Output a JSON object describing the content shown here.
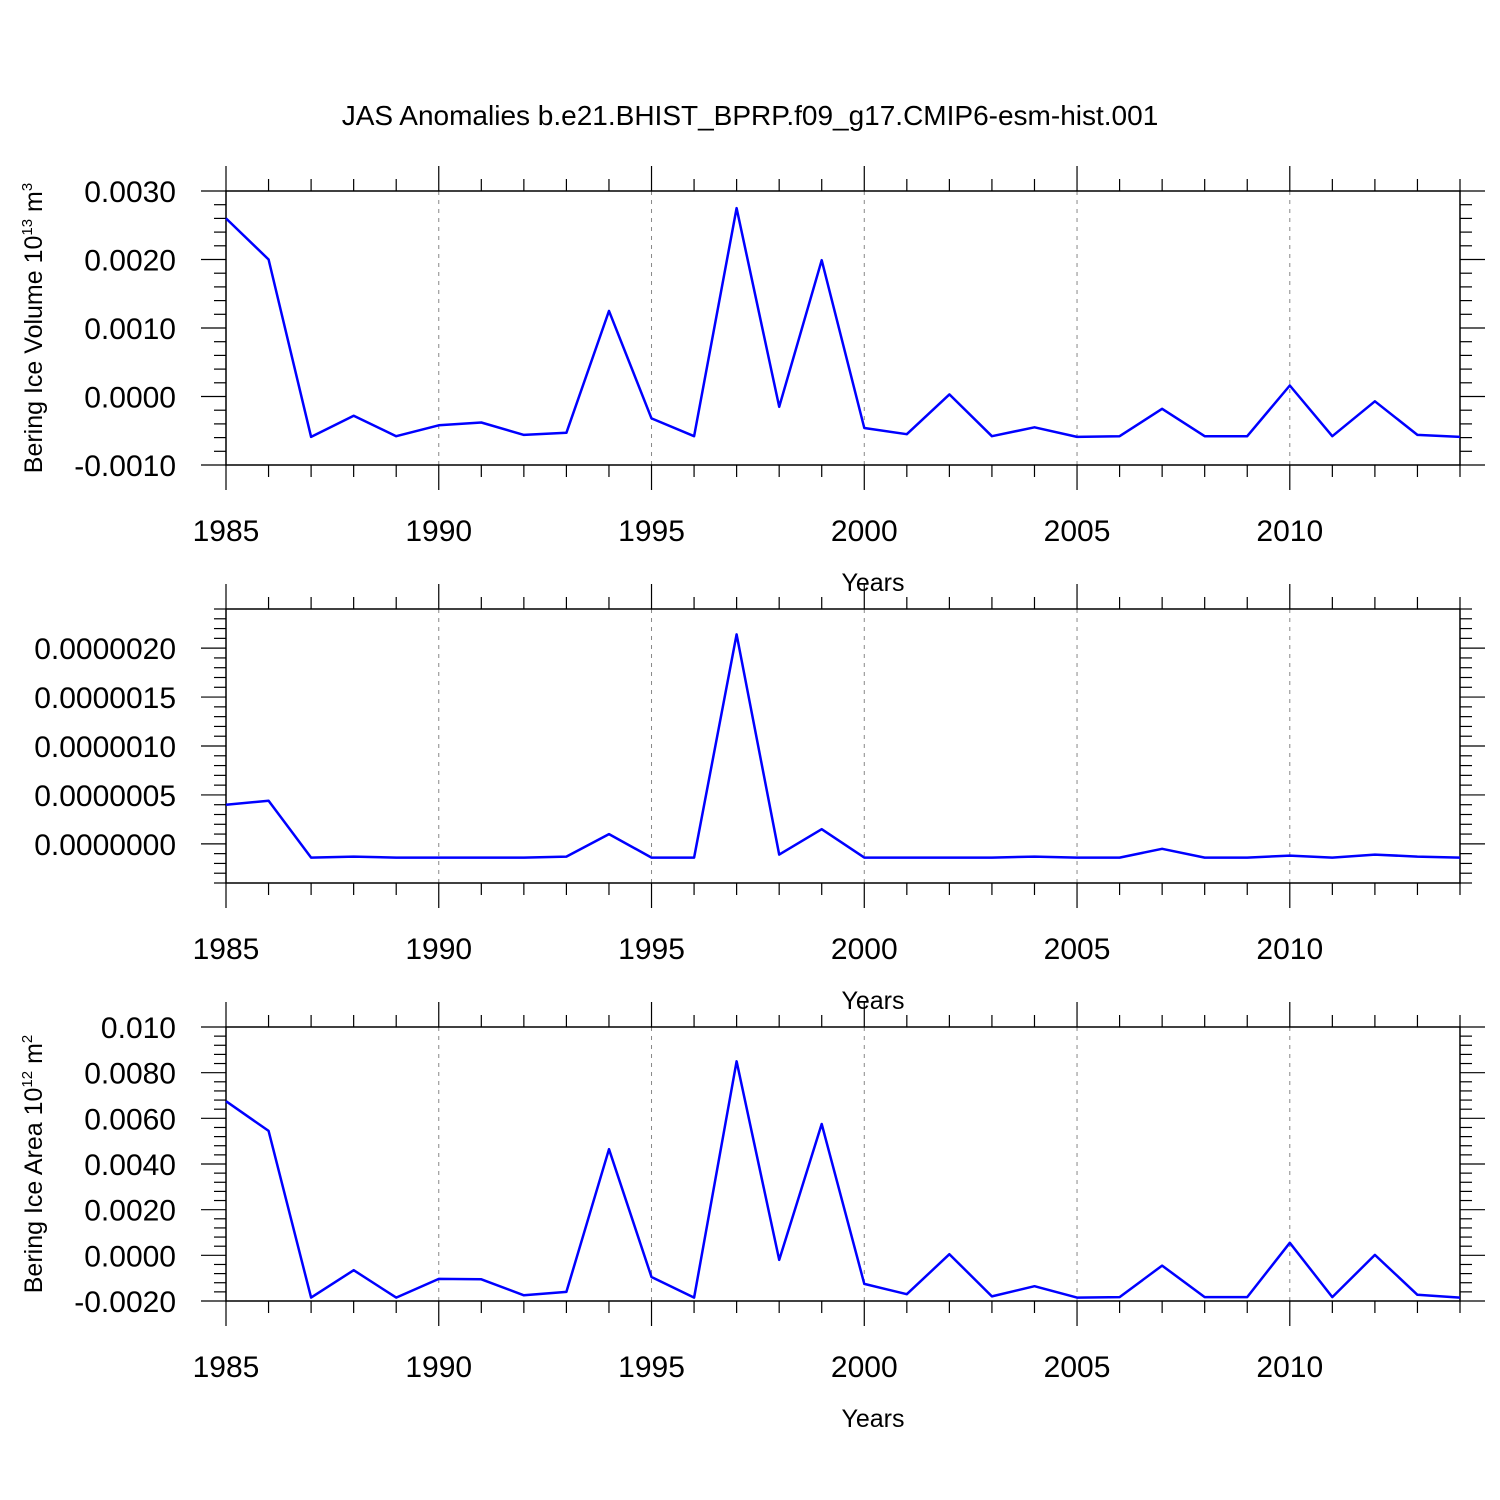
{
  "title": "JAS Anomalies b.e21.BHIST_BPRP.f09_g17.CMIP6-esm-hist.001",
  "chart_data": [
    {
      "type": "line",
      "ylabel": {
        "base": "Bering Ice Volume 10",
        "sup1": "13",
        "mid": " m",
        "sup2": "3"
      },
      "xlabel": "Years",
      "xlim": [
        1985,
        2014
      ],
      "ylim": [
        -0.001,
        0.003
      ],
      "xticks": [
        1985,
        1990,
        1995,
        2000,
        2005,
        2010
      ],
      "yticks": [
        -0.001,
        0.0,
        0.001,
        0.002,
        0.003
      ],
      "ytick_labels": [
        "-0.0010",
        "0.0000",
        "0.0010",
        "0.0020",
        "0.0030"
      ],
      "color": "#0000ff",
      "x": [
        1985,
        1986,
        1987,
        1988,
        1989,
        1990,
        1991,
        1992,
        1993,
        1994,
        1995,
        1996,
        1997,
        1998,
        1999,
        2000,
        2001,
        2002,
        2003,
        2004,
        2005,
        2006,
        2007,
        2008,
        2009,
        2010,
        2011,
        2012,
        2013,
        2014
      ],
      "values": [
        0.0026,
        0.002,
        -0.00059,
        -0.00028,
        -0.00058,
        -0.00042,
        -0.00038,
        -0.00056,
        -0.00053,
        0.00125,
        -0.00032,
        -0.00058,
        0.00275,
        -0.00015,
        0.00199,
        -0.00046,
        -0.00055,
        3e-05,
        -0.00058,
        -0.00045,
        -0.00059,
        -0.00058,
        -0.00018,
        -0.00058,
        -0.00058,
        0.00016,
        -0.00058,
        -7e-05,
        -0.00056,
        -0.00059
      ]
    },
    {
      "type": "line",
      "ylabel": {
        "base": "",
        "sup1": "",
        "mid": "",
        "sup2": ""
      },
      "xlabel": "Years",
      "xlim": [
        1985,
        2014
      ],
      "ylim": [
        -4e-07,
        2.4e-06
      ],
      "xticks": [
        1985,
        1990,
        1995,
        2000,
        2005,
        2010
      ],
      "yticks": [
        0.0,
        5e-07,
        1e-06,
        1.5e-06,
        2e-06
      ],
      "ytick_labels": [
        "0.0000000",
        "0.0000005",
        "0.0000010",
        "0.0000015",
        "0.0000020"
      ],
      "color": "#0000ff",
      "x": [
        1985,
        1986,
        1987,
        1988,
        1989,
        1990,
        1991,
        1992,
        1993,
        1994,
        1995,
        1996,
        1997,
        1998,
        1999,
        2000,
        2001,
        2002,
        2003,
        2004,
        2005,
        2006,
        2007,
        2008,
        2009,
        2010,
        2011,
        2012,
        2013,
        2014
      ],
      "values": [
        4e-07,
        4.4e-07,
        -1.4e-07,
        -1.3e-07,
        -1.4e-07,
        -1.4e-07,
        -1.4e-07,
        -1.4e-07,
        -1.3e-07,
        1e-07,
        -1.4e-07,
        -1.4e-07,
        2.14e-06,
        -1.1e-07,
        1.5e-07,
        -1.4e-07,
        -1.4e-07,
        -1.4e-07,
        -1.4e-07,
        -1.3e-07,
        -1.4e-07,
        -1.4e-07,
        -5e-08,
        -1.4e-07,
        -1.4e-07,
        -1.2e-07,
        -1.4e-07,
        -1.1e-07,
        -1.3e-07,
        -1.4e-07
      ]
    },
    {
      "type": "line",
      "ylabel": {
        "base": "Bering Ice Area 10",
        "sup1": "12",
        "mid": " m",
        "sup2": "2"
      },
      "xlabel": "Years",
      "xlim": [
        1985,
        2014
      ],
      "ylim": [
        -0.002,
        0.01
      ],
      "xticks": [
        1985,
        1990,
        1995,
        2000,
        2005,
        2010
      ],
      "yticks": [
        -0.002,
        0.0,
        0.002,
        0.004,
        0.006,
        0.008,
        0.01
      ],
      "ytick_labels": [
        "-0.0020",
        "0.0000",
        "0.0020",
        "0.0040",
        "0.0060",
        "0.0080",
        "0.010"
      ],
      "color": "#0000ff",
      "x": [
        1985,
        1986,
        1987,
        1988,
        1989,
        1990,
        1991,
        1992,
        1993,
        1994,
        1995,
        1996,
        1997,
        1998,
        1999,
        2000,
        2001,
        2002,
        2003,
        2004,
        2005,
        2006,
        2007,
        2008,
        2009,
        2010,
        2011,
        2012,
        2013,
        2014
      ],
      "values": [
        0.00675,
        0.00545,
        -0.00185,
        -0.00065,
        -0.00185,
        -0.00103,
        -0.00105,
        -0.00175,
        -0.0016,
        0.00465,
        -0.00095,
        -0.00185,
        0.0085,
        -0.0002,
        0.00575,
        -0.00125,
        -0.0017,
        5e-05,
        -0.0018,
        -0.00135,
        -0.00185,
        -0.00183,
        -0.00045,
        -0.00183,
        -0.00183,
        0.00055,
        -0.00183,
        2e-05,
        -0.00173,
        -0.00185
      ]
    }
  ]
}
